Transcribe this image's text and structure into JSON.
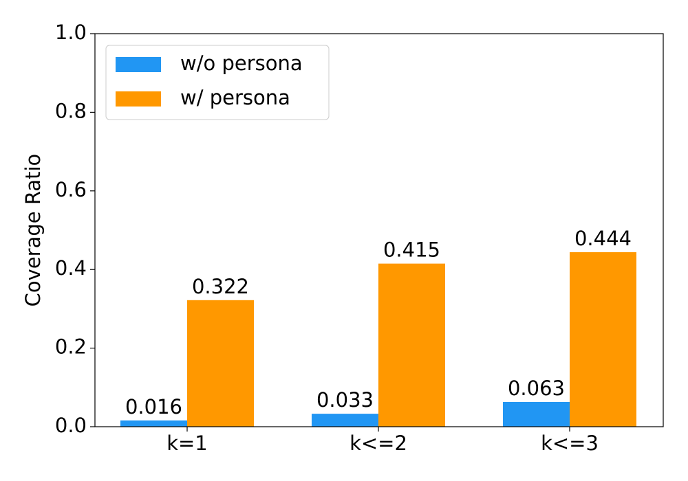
{
  "chart_data": {
    "type": "bar",
    "y_label": "Coverage Ratio",
    "categories": [
      "k=1",
      "k<=2",
      "k<=3"
    ],
    "series": [
      {
        "name": "w/o persona",
        "color": "#2196f3",
        "values": [
          0.016,
          0.033,
          0.063
        ]
      },
      {
        "name": "w/ persona",
        "color": "#ff9800",
        "values": [
          0.322,
          0.415,
          0.444
        ]
      }
    ],
    "ylim": [
      0,
      1
    ],
    "yticks": [
      {
        "value": 0,
        "label": "0.0"
      },
      0.2,
      0.4,
      0.6,
      0.8,
      {
        "value": 1,
        "label": "1.0"
      }
    ],
    "legend": "upper left"
  }
}
